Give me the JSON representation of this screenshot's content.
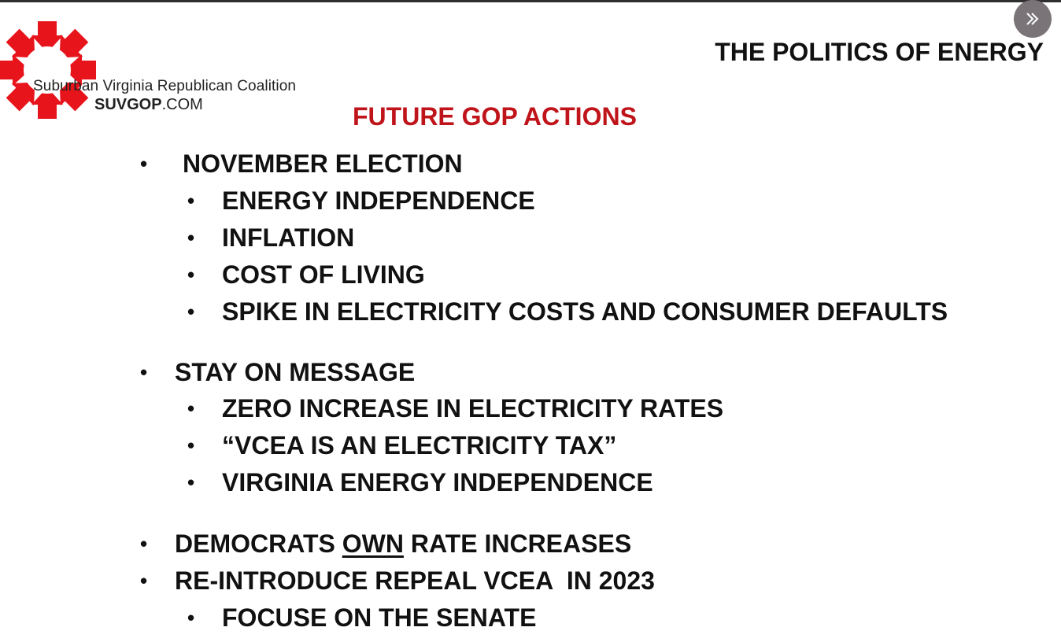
{
  "logo": {
    "name": "Suburban Virginia Republican Coalition",
    "site_bold": "SUVGOP",
    "site_suffix": ".COM",
    "brand_color": "#e8141b"
  },
  "nav": {
    "next_icon": "double-chevron-right-icon"
  },
  "slide": {
    "title": "THE POLITICS OF ENERGY",
    "subtitle": "FUTURE GOP ACTIONS",
    "subtitle_color": "#c0141b",
    "bullet_char": "•",
    "items": [
      {
        "text": "NOVEMBER ELECTION"
      },
      {
        "text": "ENERGY INDEPENDENCE"
      },
      {
        "text": "INFLATION"
      },
      {
        "text": "COST OF LIVING"
      },
      {
        "text": "SPIKE IN ELECTRICITY COSTS AND CONSUMER DEFAULTS"
      },
      {
        "text": "STAY ON MESSAGE"
      },
      {
        "text": "ZERO INCREASE IN ELECTRICITY RATES"
      },
      {
        "text": "“VCEA IS AN ELECTRICITY TAX”"
      },
      {
        "text": "VIRGINIA ENERGY INDEPENDENCE"
      },
      {
        "text_before": "DEMOCRATS ",
        "text_underlined": "OWN",
        "text_after": " RATE INCREASES"
      },
      {
        "text": "RE-INTRODUCE REPEAL VCEA  IN 2023"
      },
      {
        "text": "FOCUSE ON THE SENATE"
      }
    ]
  }
}
